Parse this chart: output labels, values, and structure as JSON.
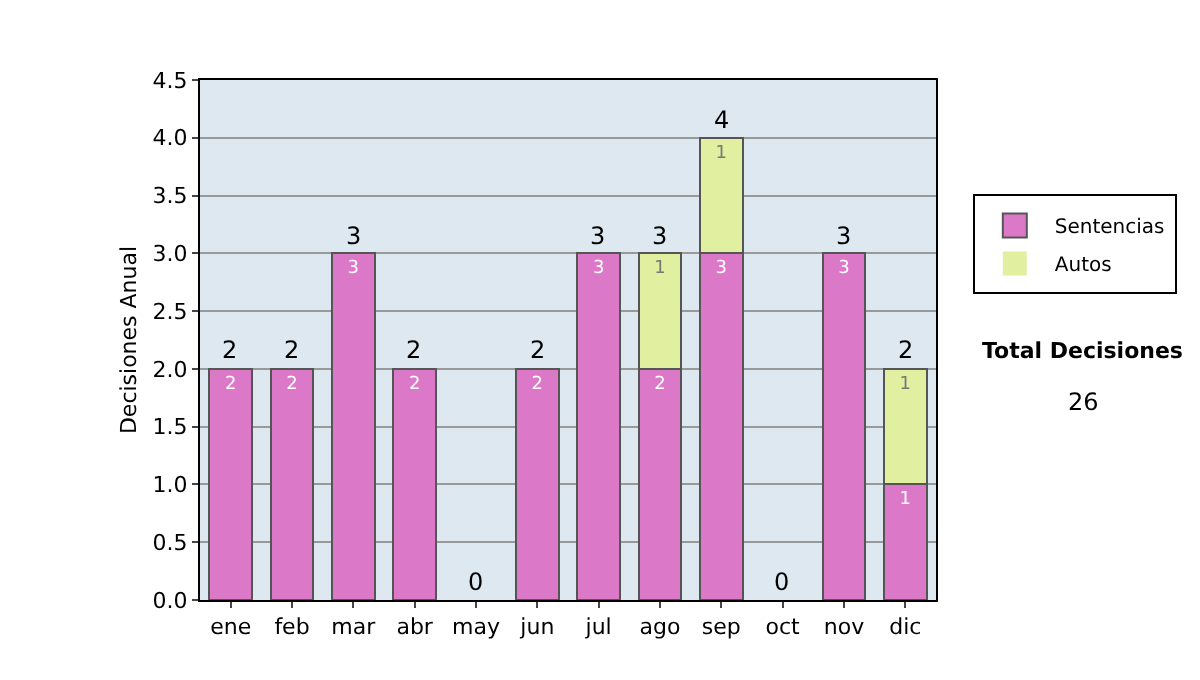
{
  "chart_data": {
    "type": "bar",
    "stacked": true,
    "ylabel": "Decisiones Anual",
    "categories": [
      "ene",
      "feb",
      "mar",
      "abr",
      "may",
      "jun",
      "jul",
      "ago",
      "sep",
      "oct",
      "nov",
      "dic"
    ],
    "series": [
      {
        "name": "Sentencias",
        "color": "#dc78c8",
        "values": [
          2,
          2,
          3,
          2,
          0,
          2,
          3,
          2,
          3,
          0,
          3,
          1
        ],
        "value_labels": [
          "2",
          "2",
          "3",
          "2",
          null,
          "2",
          "3",
          "2",
          "3",
          null,
          "3",
          "1"
        ]
      },
      {
        "name": "Autos",
        "color": "#e0f0a0",
        "values": [
          0,
          0,
          0,
          0,
          0,
          0,
          0,
          1,
          1,
          0,
          0,
          1
        ],
        "value_labels": [
          null,
          null,
          null,
          null,
          null,
          null,
          null,
          "1",
          "1",
          null,
          null,
          "1"
        ]
      }
    ],
    "totals": [
      "2",
      "2",
      "3",
      "2",
      "0",
      "2",
      "3",
      "3",
      "4",
      "0",
      "3",
      "2"
    ],
    "ylim": [
      0,
      4.5
    ],
    "yticks": [
      {
        "value": 0,
        "label": "0.0"
      },
      {
        "value": 0.5,
        "label": "0.5"
      },
      {
        "value": 1,
        "label": "1.0"
      },
      {
        "value": 1.5,
        "label": "1.5"
      },
      {
        "value": 2,
        "label": "2.0"
      },
      {
        "value": 2.5,
        "label": "2.5"
      },
      {
        "value": 3,
        "label": "3.0"
      },
      {
        "value": 3.5,
        "label": "3.5"
      },
      {
        "value": 4,
        "label": "4.0"
      },
      {
        "value": 4.5,
        "label": "4.5"
      }
    ],
    "grid": "y",
    "legend": "right",
    "annotations": [
      "Total Decisiones",
      "26"
    ]
  }
}
